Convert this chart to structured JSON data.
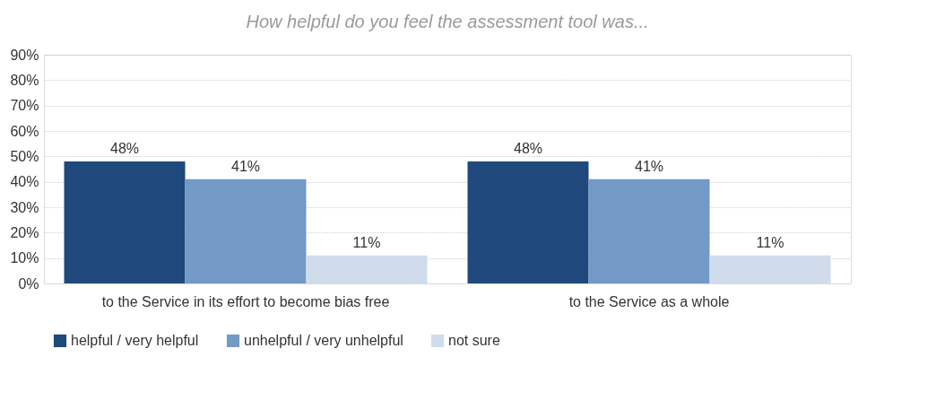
{
  "chart_data": {
    "type": "bar",
    "title": "How helpful do you feel the assessment tool was...",
    "categories": [
      "to the Service in its effort to become bias free",
      "to the Service as a whole"
    ],
    "series": [
      {
        "name": "helpful / very helpful",
        "color": "#1f497d",
        "values": [
          48,
          48
        ],
        "value_labels": [
          "48%",
          "48%"
        ]
      },
      {
        "name": "unhelpful / very unhelpful",
        "color": "#7399c6",
        "values": [
          41,
          41
        ],
        "value_labels": [
          "41%",
          "41%"
        ]
      },
      {
        "name": "not sure",
        "color": "#d0dcec",
        "values": [
          11,
          11
        ],
        "value_labels": [
          "11%",
          "11%"
        ]
      }
    ],
    "ylim": [
      0,
      90
    ],
    "yticks": [
      {
        "value": 0,
        "label": "0%"
      },
      {
        "value": 10,
        "label": "10%"
      },
      {
        "value": 20,
        "label": "20%"
      },
      {
        "value": 30,
        "label": "30%"
      },
      {
        "value": 40,
        "label": "40%"
      },
      {
        "value": 50,
        "label": "50%"
      },
      {
        "value": 60,
        "label": "60%"
      },
      {
        "value": 70,
        "label": "70%"
      },
      {
        "value": 80,
        "label": "80%"
      },
      {
        "value": 90,
        "label": "90%"
      }
    ],
    "grid": "y",
    "legend": "bottom"
  }
}
